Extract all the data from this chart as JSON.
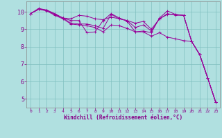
{
  "title": "",
  "xlabel": "Windchill (Refroidissement éolien,°C)",
  "ylabel": "",
  "bg_color": "#b0e0e0",
  "grid_color": "#80c0c0",
  "line_color": "#990099",
  "xlim": [
    -0.5,
    23.5
  ],
  "ylim": [
    4.5,
    10.6
  ],
  "xticks": [
    0,
    1,
    2,
    3,
    4,
    5,
    6,
    7,
    8,
    9,
    10,
    11,
    12,
    13,
    14,
    15,
    16,
    17,
    18,
    19,
    20,
    21,
    22,
    23
  ],
  "yticks": [
    5,
    6,
    7,
    8,
    9,
    10
  ],
  "lines": [
    [
      0,
      9.9,
      1,
      10.2,
      2,
      10.1,
      3,
      9.9,
      4,
      9.65,
      5,
      9.5,
      6,
      9.5,
      7,
      8.8,
      8,
      8.85,
      9,
      9.5,
      10,
      9.9,
      11,
      9.65,
      12,
      9.45,
      13,
      8.85,
      14,
      8.9,
      15,
      8.8,
      16,
      9.65,
      17,
      10.05,
      18,
      9.85,
      19,
      9.8,
      20,
      8.3,
      21,
      7.55,
      22,
      6.2,
      23,
      4.8
    ],
    [
      0,
      9.9,
      1,
      10.15,
      2,
      10.1,
      3,
      9.85,
      4,
      9.65,
      5,
      9.6,
      6,
      9.8,
      7,
      9.75,
      8,
      9.6,
      9,
      9.55,
      10,
      9.7,
      11,
      9.6,
      12,
      9.5,
      13,
      9.35,
      14,
      9.45,
      15,
      9.0,
      16,
      9.6,
      17,
      9.85,
      18,
      9.85,
      19,
      9.8,
      20,
      8.3,
      21,
      7.55,
      22,
      6.2,
      23,
      4.8
    ],
    [
      0,
      9.9,
      1,
      10.15,
      2,
      10.1,
      3,
      9.85,
      4,
      9.65,
      5,
      9.35,
      6,
      9.3,
      7,
      9.3,
      8,
      9.2,
      9,
      9.05,
      10,
      9.85,
      11,
      9.6,
      12,
      9.5,
      13,
      9.1,
      14,
      9.25,
      15,
      8.9,
      16,
      9.6,
      17,
      9.9,
      18,
      9.8,
      19,
      9.8,
      20,
      8.3,
      21,
      7.55,
      22,
      6.2,
      23,
      4.8
    ],
    [
      0,
      9.9,
      1,
      10.15,
      2,
      10.05,
      3,
      9.8,
      4,
      9.6,
      5,
      9.3,
      6,
      9.25,
      7,
      9.2,
      8,
      9.1,
      9,
      8.85,
      10,
      9.25,
      11,
      9.2,
      12,
      9.05,
      13,
      8.85,
      14,
      8.85,
      15,
      8.6,
      16,
      8.8,
      17,
      8.55,
      18,
      8.45,
      19,
      8.35,
      20,
      8.3,
      21,
      7.55,
      22,
      6.2,
      23,
      4.8
    ]
  ]
}
